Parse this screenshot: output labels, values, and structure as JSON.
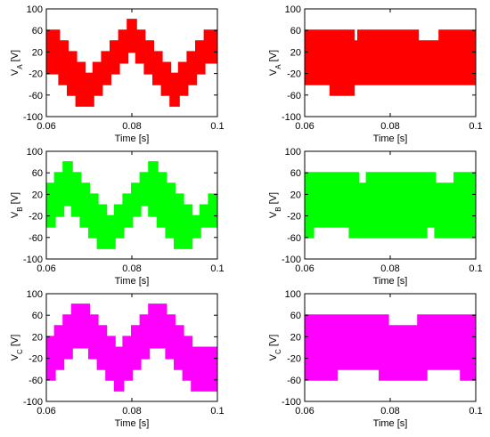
{
  "chart_data": [
    {
      "type": "area",
      "panel": "left-top",
      "color": "#ff0000",
      "xlabel": "Time [s]",
      "ylabel_main": "V",
      "ylabel_sub": "A",
      "ylabel_unit": " [V]",
      "xlim": [
        0.06,
        0.1
      ],
      "ylim": [
        -100,
        100
      ],
      "xticks": [
        "0.06",
        "0.08",
        "0.1"
      ],
      "yticks": [
        "100",
        "60",
        "20",
        "-20",
        "-60",
        "-100"
      ],
      "band": {
        "x": [
          0.06,
          0.063,
          0.065,
          0.067,
          0.069,
          0.071,
          0.073,
          0.075,
          0.077,
          0.079,
          0.081,
          0.083,
          0.085,
          0.087,
          0.089,
          0.091,
          0.093,
          0.095,
          0.097,
          0.1
        ],
        "upper": [
          60,
          40,
          20,
          0,
          -20,
          0,
          20,
          40,
          60,
          80,
          60,
          40,
          20,
          0,
          -20,
          0,
          20,
          40,
          60,
          80
        ],
        "lower": [
          -20,
          -40,
          -60,
          -80,
          -80,
          -60,
          -40,
          -20,
          0,
          20,
          0,
          -20,
          -40,
          -60,
          -80,
          -60,
          -40,
          -20,
          0,
          0
        ]
      }
    },
    {
      "type": "area",
      "panel": "right-top",
      "color": "#ff0000",
      "xlabel": "Time [s]",
      "ylabel_main": "V",
      "ylabel_sub": "A",
      "ylabel_unit": " [V]",
      "xlim": [
        0.06,
        0.1
      ],
      "ylim": [
        -100,
        100
      ],
      "xticks": [
        "0.06",
        "0.08",
        "0.1"
      ],
      "yticks": [
        "100",
        "60",
        "20",
        "-20",
        "-60",
        "-100"
      ],
      "band": {
        "x": [
          0.06,
          0.0645,
          0.066,
          0.0715,
          0.0725,
          0.0845,
          0.0865,
          0.0915,
          0.0925,
          0.1
        ],
        "upper": [
          60,
          60,
          60,
          40,
          60,
          60,
          40,
          60,
          60,
          60
        ],
        "lower": [
          -40,
          -40,
          -60,
          -40,
          -40,
          -40,
          -40,
          -40,
          -40,
          -40
        ]
      }
    },
    {
      "type": "area",
      "panel": "left-middle",
      "color": "#00ff00",
      "xlabel": "Time [s]",
      "ylabel_main": "V",
      "ylabel_sub": "B",
      "ylabel_unit": " [V]",
      "xlim": [
        0.06,
        0.1
      ],
      "ylim": [
        -100,
        100
      ],
      "xticks": [
        "0.06",
        "0.08",
        "0.1"
      ],
      "yticks": [
        "100",
        "60",
        "20",
        "-20",
        "-60",
        "-100"
      ],
      "band": {
        "x": [
          0.06,
          0.062,
          0.064,
          0.066,
          0.068,
          0.07,
          0.072,
          0.074,
          0.076,
          0.078,
          0.08,
          0.082,
          0.084,
          0.086,
          0.088,
          0.09,
          0.092,
          0.094,
          0.096,
          0.098,
          0.1
        ],
        "upper": [
          40,
          60,
          80,
          60,
          40,
          20,
          0,
          -20,
          0,
          20,
          40,
          60,
          80,
          60,
          40,
          20,
          0,
          -20,
          0,
          20,
          40
        ],
        "lower": [
          -40,
          -20,
          0,
          -20,
          -40,
          -60,
          -80,
          -80,
          -60,
          -40,
          -20,
          0,
          -20,
          -40,
          -60,
          -80,
          -80,
          -60,
          -40,
          -40,
          -40
        ]
      }
    },
    {
      "type": "area",
      "panel": "right-middle",
      "color": "#00ff00",
      "xlabel": "Time [s]",
      "ylabel_main": "V",
      "ylabel_sub": "B",
      "ylabel_unit": " [V]",
      "xlim": [
        0.06,
        0.1
      ],
      "ylim": [
        -100,
        100
      ],
      "xticks": [
        "0.06",
        "0.08",
        "0.1"
      ],
      "yticks": [
        "100",
        "60",
        "20",
        "-20",
        "-60",
        "-100"
      ],
      "band": {
        "x": [
          0.06,
          0.062,
          0.066,
          0.0705,
          0.0725,
          0.0745,
          0.0805,
          0.0885,
          0.0905,
          0.095,
          0.097,
          0.1
        ],
        "upper": [
          60,
          60,
          60,
          60,
          40,
          60,
          60,
          60,
          40,
          60,
          60,
          60
        ],
        "lower": [
          -60,
          -40,
          -40,
          -60,
          -60,
          -60,
          -60,
          -40,
          -60,
          -60,
          -60,
          -60
        ]
      }
    },
    {
      "type": "area",
      "panel": "left-bottom",
      "color": "#ff00ff",
      "xlabel": "Time [s]",
      "ylabel_main": "V",
      "ylabel_sub": "C",
      "ylabel_unit": " [V]",
      "xlim": [
        0.06,
        0.1
      ],
      "ylim": [
        -100,
        100
      ],
      "xticks": [
        "0.06",
        "0.08",
        "0.1"
      ],
      "yticks": [
        "100",
        "60",
        "20",
        "-20",
        "-60",
        "-100"
      ],
      "band": {
        "x": [
          0.06,
          0.062,
          0.064,
          0.066,
          0.068,
          0.07,
          0.072,
          0.074,
          0.076,
          0.078,
          0.08,
          0.082,
          0.084,
          0.086,
          0.088,
          0.09,
          0.092,
          0.094,
          0.096,
          0.098,
          0.1
        ],
        "upper": [
          20,
          40,
          60,
          80,
          80,
          60,
          40,
          20,
          0,
          20,
          40,
          60,
          80,
          80,
          60,
          40,
          20,
          0,
          0,
          0,
          0
        ],
        "lower": [
          -60,
          -40,
          -20,
          0,
          0,
          -20,
          -40,
          -60,
          -80,
          -60,
          -40,
          -20,
          0,
          0,
          -20,
          -40,
          -60,
          -80,
          -80,
          -80,
          -80
        ]
      }
    },
    {
      "type": "area",
      "panel": "right-bottom",
      "color": "#ff00ff",
      "xlabel": "Time [s]",
      "ylabel_main": "V",
      "ylabel_sub": "C",
      "ylabel_unit": " [V]",
      "xlim": [
        0.06,
        0.1
      ],
      "ylim": [
        -100,
        100
      ],
      "xticks": [
        "0.06",
        "0.08",
        "0.1"
      ],
      "yticks": [
        "100",
        "60",
        "20",
        "-20",
        "-60",
        "-100"
      ],
      "band": {
        "x": [
          0.06,
          0.066,
          0.0675,
          0.0775,
          0.0795,
          0.0865,
          0.0885,
          0.0965,
          0.1
        ],
        "upper": [
          60,
          60,
          60,
          60,
          40,
          60,
          60,
          60,
          60
        ],
        "lower": [
          -60,
          -60,
          -40,
          -60,
          -60,
          -60,
          -40,
          -60,
          -60
        ]
      }
    }
  ]
}
